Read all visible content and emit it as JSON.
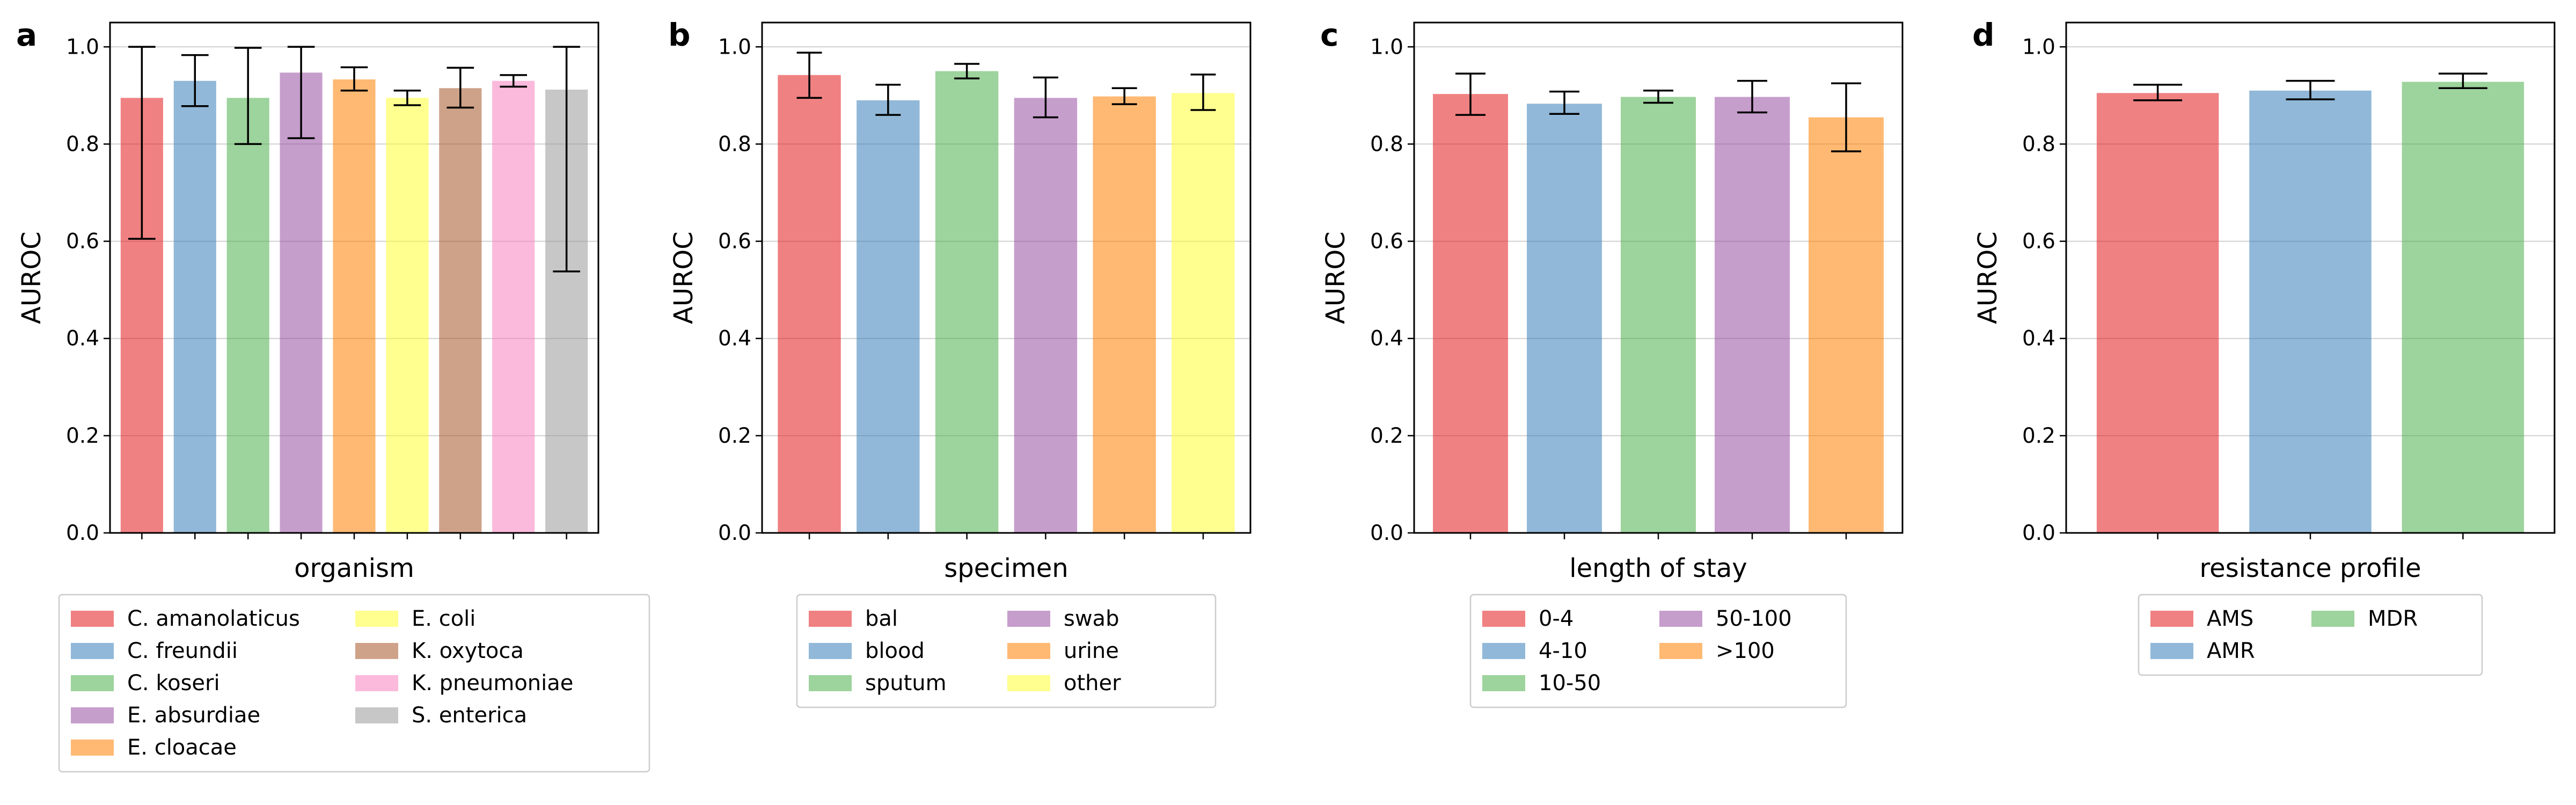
{
  "chart_data": [
    {
      "panel": "a",
      "type": "bar",
      "xlabel": "organism",
      "ylabel": "AUROC",
      "ylim": [
        0,
        1.05
      ],
      "yticks": [
        "0.0",
        "0.2",
        "0.4",
        "0.6",
        "0.8",
        "1.0"
      ],
      "grid": true,
      "legend_placement": "below",
      "legend_columns": 2,
      "categories": [
        "C. amanolaticus",
        "C. freundii",
        "C. koseri",
        "E. absurdiae",
        "E. cloacae",
        "E. coli",
        "K. oxytoca",
        "K. pneumoniae",
        "S. enterica"
      ],
      "values": [
        0.895,
        0.93,
        0.895,
        0.947,
        0.933,
        0.895,
        0.915,
        0.93,
        0.912
      ],
      "error_low": [
        0.605,
        0.878,
        0.8,
        0.812,
        0.91,
        0.88,
        0.875,
        0.918,
        0.538
      ],
      "error_high": [
        1.0,
        0.983,
        0.998,
        1.0,
        0.958,
        0.91,
        0.957,
        0.942,
        1.0
      ],
      "colors": [
        "#E41A1C",
        "#377EB8",
        "#4DAF4A",
        "#984EA3",
        "#FF7F00",
        "#FFFF33",
        "#A65628",
        "#F781BF",
        "#999999"
      ]
    },
    {
      "panel": "b",
      "type": "bar",
      "xlabel": "specimen",
      "ylabel": "AUROC",
      "ylim": [
        0,
        1.05
      ],
      "yticks": [
        "0.0",
        "0.2",
        "0.4",
        "0.6",
        "0.8",
        "1.0"
      ],
      "grid": true,
      "legend_placement": "below",
      "legend_columns": 2,
      "categories": [
        "bal",
        "blood",
        "sputum",
        "swab",
        "urine",
        "other"
      ],
      "values": [
        0.942,
        0.89,
        0.95,
        0.895,
        0.898,
        0.905
      ],
      "error_low": [
        0.895,
        0.86,
        0.935,
        0.855,
        0.882,
        0.87
      ],
      "error_high": [
        0.988,
        0.922,
        0.965,
        0.937,
        0.915,
        0.943
      ],
      "colors": [
        "#E41A1C",
        "#377EB8",
        "#4DAF4A",
        "#984EA3",
        "#FF7F00",
        "#FFFF33"
      ]
    },
    {
      "panel": "c",
      "type": "bar",
      "xlabel": "length of stay",
      "ylabel": "AUROC",
      "ylim": [
        0,
        1.05
      ],
      "yticks": [
        "0.0",
        "0.2",
        "0.4",
        "0.6",
        "0.8",
        "1.0"
      ],
      "grid": true,
      "legend_placement": "below",
      "legend_columns": 2,
      "categories": [
        "0-4",
        "4-10",
        "10-50",
        "50-100",
        ">100"
      ],
      "values": [
        0.903,
        0.883,
        0.897,
        0.897,
        0.855
      ],
      "error_low": [
        0.86,
        0.862,
        0.885,
        0.865,
        0.785
      ],
      "error_high": [
        0.945,
        0.908,
        0.91,
        0.93,
        0.925
      ],
      "colors": [
        "#E41A1C",
        "#377EB8",
        "#4DAF4A",
        "#984EA3",
        "#FF7F00"
      ]
    },
    {
      "panel": "d",
      "type": "bar",
      "xlabel": "resistance profile",
      "ylabel": "AUROC",
      "ylim": [
        0,
        1.05
      ],
      "yticks": [
        "0.0",
        "0.2",
        "0.4",
        "0.6",
        "0.8",
        "1.0"
      ],
      "grid": true,
      "legend_placement": "below",
      "legend_columns": 2,
      "categories": [
        "AMS",
        "AMR",
        "MDR"
      ],
      "values": [
        0.905,
        0.91,
        0.928
      ],
      "error_low": [
        0.89,
        0.892,
        0.915
      ],
      "error_high": [
        0.922,
        0.93,
        0.945
      ],
      "colors": [
        "#E41A1C",
        "#377EB8",
        "#4DAF4A"
      ]
    }
  ]
}
